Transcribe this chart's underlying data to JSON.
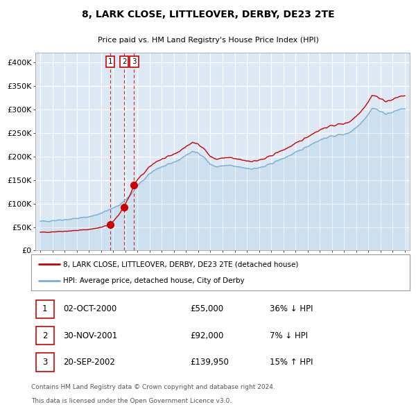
{
  "title": "8, LARK CLOSE, LITTLEOVER, DERBY, DE23 2TE",
  "subtitle": "Price paid vs. HM Land Registry's House Price Index (HPI)",
  "legend_line1": "8, LARK CLOSE, LITTLEOVER, DERBY, DE23 2TE (detached house)",
  "legend_line2": "HPI: Average price, detached house, City of Derby",
  "footer1": "Contains HM Land Registry data © Crown copyright and database right 2024.",
  "footer2": "This data is licensed under the Open Government Licence v3.0.",
  "transactions": [
    {
      "num": 1,
      "date": "02-OCT-2000",
      "price": "£55,000",
      "hpi_diff": "36% ↓ HPI"
    },
    {
      "num": 2,
      "date": "30-NOV-2001",
      "price": "£92,000",
      "hpi_diff": "7% ↓ HPI"
    },
    {
      "num": 3,
      "date": "20-SEP-2002",
      "price": "£139,950",
      "hpi_diff": "15% ↑ HPI"
    }
  ],
  "transaction_dates_decimal": [
    2000.75,
    2001.91,
    2002.72
  ],
  "transaction_prices": [
    55000,
    92000,
    139950
  ],
  "red_line_color": "#cc0000",
  "blue_line_color": "#7aadd4",
  "plot_bg_color": "#dce9f5",
  "grid_color": "#ffffff",
  "ylim": [
    0,
    420000
  ],
  "xlim_start": 1994.6,
  "xlim_end": 2025.4,
  "yticks": [
    0,
    50000,
    100000,
    150000,
    200000,
    250000,
    300000,
    350000,
    400000
  ],
  "ytick_labels": [
    "£0",
    "£50K",
    "£100K",
    "£150K",
    "£200K",
    "£250K",
    "£300K",
    "£350K",
    "£400K"
  ],
  "xtick_years": [
    1995,
    1996,
    1997,
    1998,
    1999,
    2000,
    2001,
    2002,
    2003,
    2004,
    2005,
    2006,
    2007,
    2008,
    2009,
    2010,
    2011,
    2012,
    2013,
    2014,
    2015,
    2016,
    2017,
    2018,
    2019,
    2020,
    2021,
    2022,
    2023,
    2024,
    2025
  ]
}
